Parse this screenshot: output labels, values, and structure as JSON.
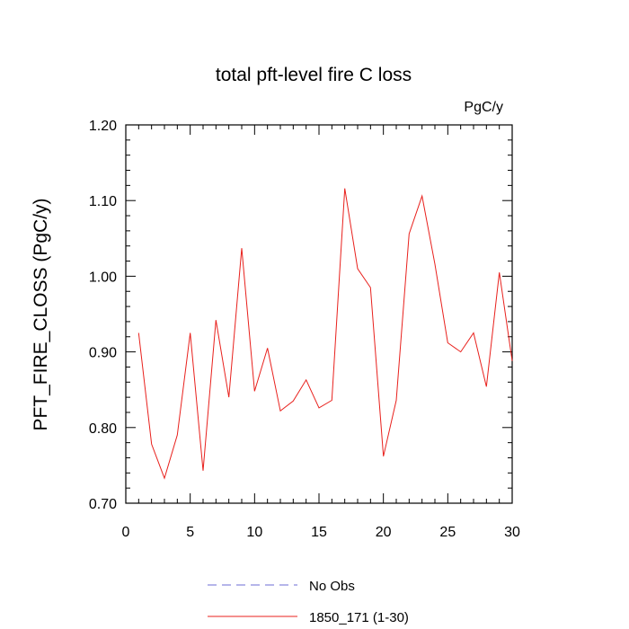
{
  "chart_data": {
    "type": "line",
    "title": "total pft-level fire C loss",
    "units": "PgC/y",
    "ylabel": "PFT_FIRE_CLOSS  (PgC/y)",
    "xlabel": "",
    "xlim": [
      0,
      30
    ],
    "ylim": [
      0.7,
      1.2
    ],
    "xticks": [
      0,
      5,
      10,
      15,
      20,
      25,
      30
    ],
    "xtick_labels": [
      "0",
      "5",
      "10",
      "15",
      "20",
      "25",
      "30"
    ],
    "yticks": [
      0.7,
      0.8,
      0.9,
      1.0,
      1.1,
      1.2
    ],
    "ytick_labels": [
      "0.70",
      "0.80",
      "0.90",
      "1.00",
      "1.10",
      "1.20"
    ],
    "grid": false,
    "legend": {
      "placement": "bottom"
    },
    "series": [
      {
        "name": "No Obs",
        "color": "#6b6bd6",
        "dash": "dashed",
        "x": [],
        "values": []
      },
      {
        "name": "1850_171 (1-30)",
        "color": "#e8201c",
        "dash": "solid",
        "x": [
          1,
          2,
          3,
          4,
          5,
          6,
          7,
          8,
          9,
          10,
          11,
          12,
          13,
          14,
          15,
          16,
          17,
          18,
          19,
          20,
          21,
          22,
          23,
          24,
          25,
          26,
          27,
          28,
          29,
          30
        ],
        "values": [
          0.925,
          0.778,
          0.733,
          0.79,
          0.925,
          0.743,
          0.942,
          0.84,
          1.037,
          0.848,
          0.905,
          0.822,
          0.835,
          0.863,
          0.826,
          0.836,
          1.116,
          1.01,
          0.985,
          0.762,
          0.836,
          1.056,
          1.106,
          1.016,
          0.912,
          0.9,
          0.925,
          0.854,
          1.005,
          0.888
        ]
      }
    ]
  }
}
